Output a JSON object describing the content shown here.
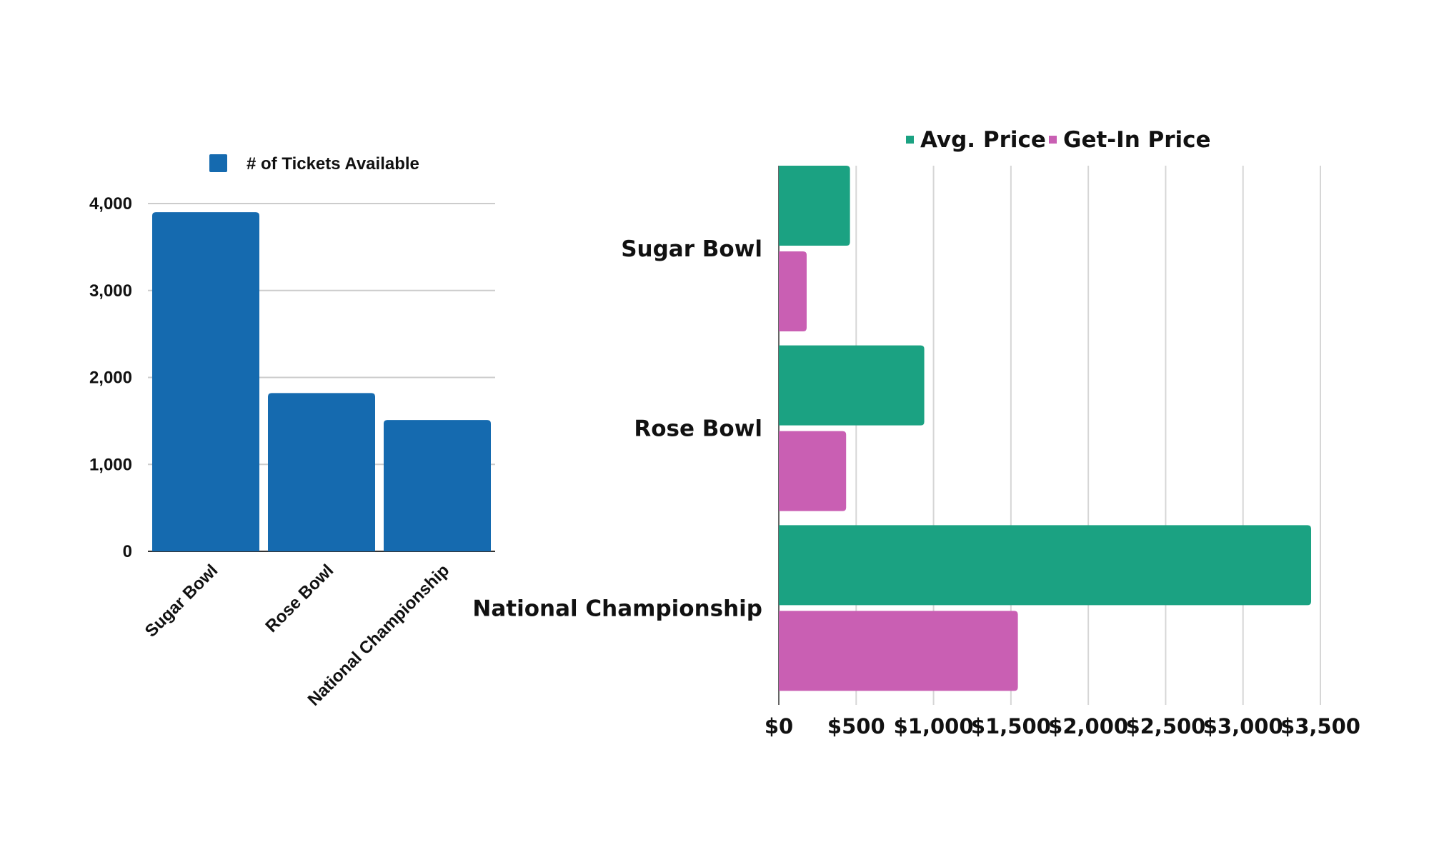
{
  "chart_data": [
    {
      "type": "bar",
      "title": "",
      "categories": [
        "Sugar Bowl",
        "Rose Bowl",
        "National Championship"
      ],
      "series": [
        {
          "name": "# of Tickets Available",
          "color": "#156aaf",
          "values": [
            3900,
            1820,
            1510
          ]
        }
      ],
      "yticks": [
        "0",
        "1,000",
        "2,000",
        "3,000",
        "4,000"
      ],
      "ylim": [
        0,
        4000
      ],
      "grid": true,
      "legend": "top"
    },
    {
      "type": "bar",
      "orientation": "horizontal",
      "title": "",
      "categories": [
        "Sugar Bowl",
        "Rose Bowl",
        "National Championship"
      ],
      "series": [
        {
          "name": "Avg. Price",
          "color": "#1ba282",
          "values": [
            460,
            940,
            3440
          ]
        },
        {
          "name": "Get-In Price",
          "color": "#c95fb3",
          "values": [
            180,
            435,
            1545
          ]
        }
      ],
      "xticks": [
        "$0",
        "$500",
        "$1,000",
        "$1,500",
        "$2,000",
        "$2,500",
        "$3,000",
        "$3,500"
      ],
      "xlim": [
        0,
        3500
      ],
      "grid": true,
      "legend": "top"
    }
  ]
}
